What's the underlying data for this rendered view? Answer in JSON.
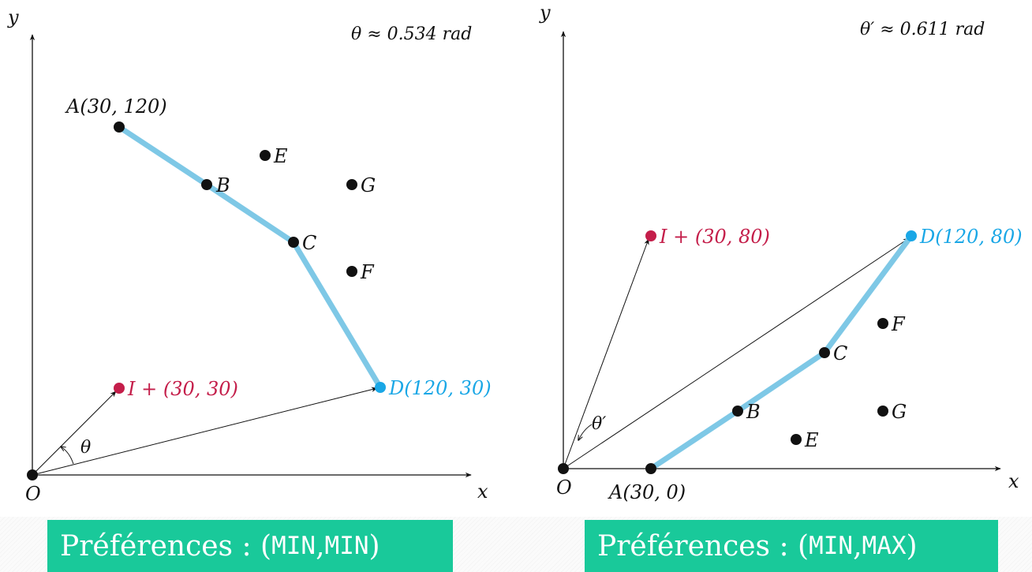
{
  "colors": {
    "path": "#7ec8e6",
    "highlight_point": "#1aa7e6",
    "ideal_point": "#c41e4a",
    "points": "#111111",
    "caption_bg": "#19c99a"
  },
  "left": {
    "angle_label": "θ ≈ 0.534 rad",
    "axis_x": "x",
    "axis_y": "y",
    "origin": "O",
    "theta": "θ",
    "ideal_label": "I + (30, 30)",
    "labels": {
      "A": "A(30, 120)",
      "B": "B",
      "C": "C",
      "D": "D(120, 30)",
      "E": "E",
      "F": "F",
      "G": "G"
    },
    "caption_prefix": "Préférences : (",
    "caption_a": "MIN",
    "caption_sep": ", ",
    "caption_b": "MIN",
    "caption_suffix": ")"
  },
  "right": {
    "angle_label": "θ′ ≈ 0.611 rad",
    "axis_x": "x",
    "axis_y": "y",
    "origin": "O",
    "theta": "θ′",
    "ideal_label": "I + (30, 80)",
    "labels": {
      "A": "A(30, 0)",
      "B": "B",
      "C": "C",
      "D": "D(120, 80)",
      "E": "E",
      "F": "F",
      "G": "G"
    },
    "caption_prefix": "Préférences : (",
    "caption_a": "MIN",
    "caption_sep": ", ",
    "caption_b": "MAX",
    "caption_suffix": ")"
  }
}
